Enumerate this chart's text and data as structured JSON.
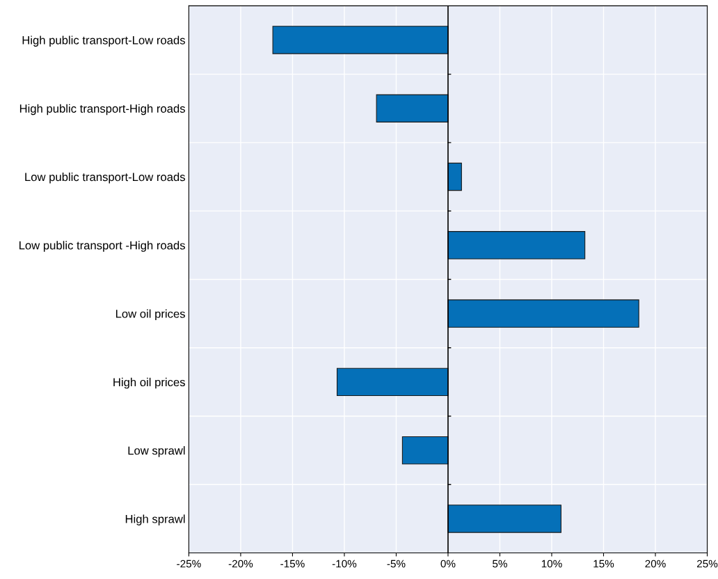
{
  "chart_data": {
    "type": "bar",
    "orientation": "horizontal",
    "categories": [
      "High public transport-Low roads",
      "High public transport-High roads",
      "Low public transport-Low roads",
      "Low public transport -High roads",
      "Low oil prices",
      "High oil prices",
      "Low sprawl",
      "High sprawl"
    ],
    "values": [
      -16.9,
      -6.9,
      1.3,
      13.2,
      18.4,
      -10.7,
      -4.4,
      10.9
    ],
    "color": "#0570b8",
    "xlim": [
      -25,
      25
    ],
    "xticks": [
      {
        "value": -25,
        "label": "-25%"
      },
      {
        "value": -20,
        "label": "-20%"
      },
      {
        "value": -15,
        "label": "-15%"
      },
      {
        "value": -10,
        "label": "-10%"
      },
      {
        "value": -5,
        "label": "-5%"
      },
      {
        "value": 0,
        "label": "0%"
      },
      {
        "value": 5,
        "label": "5%"
      },
      {
        "value": 10,
        "label": "10%"
      },
      {
        "value": 15,
        "label": "15%"
      },
      {
        "value": 20,
        "label": "20%"
      },
      {
        "value": 25,
        "label": "25%"
      }
    ],
    "grid": true
  }
}
